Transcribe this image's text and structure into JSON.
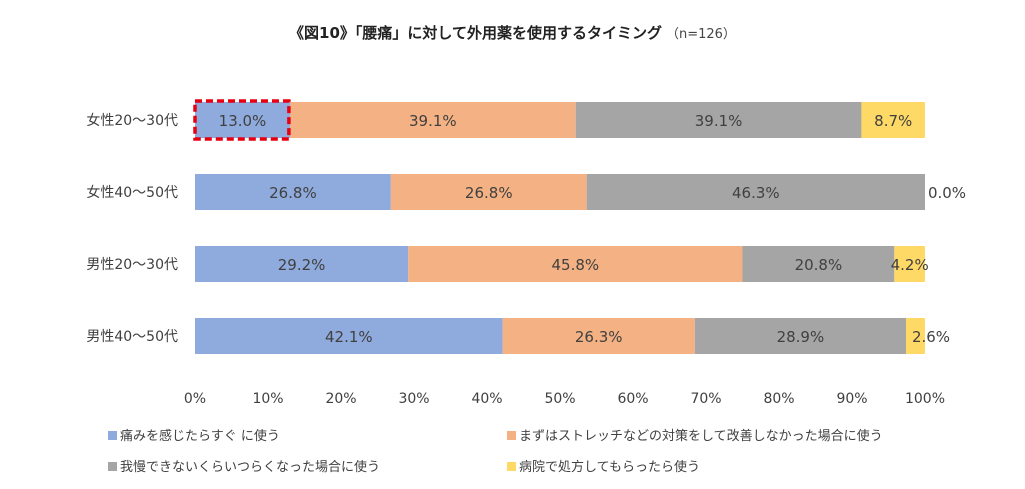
{
  "chart_data": {
    "type": "bar",
    "orientation": "horizontal",
    "stacked": "percent",
    "title": "《図10》「腰痛」に対して外用薬を使用するタイミング",
    "title_note": "（n=126）",
    "categories": [
      "女性20～30代",
      "女性40～50代",
      "男性20～30代",
      "男性40～50代"
    ],
    "series": [
      {
        "name": "痛みを感じたらすぐ に使う",
        "color": "#8faadc",
        "values": [
          13.0,
          26.8,
          29.2,
          42.1
        ],
        "labels": [
          "13.0%",
          "26.8%",
          "29.2%",
          "42.1%"
        ]
      },
      {
        "name": "まずはストレッチなどの対策をして改善しなかった場合に使う",
        "color": "#f4b183",
        "values": [
          39.1,
          26.8,
          45.8,
          26.3
        ],
        "labels": [
          "39.1%",
          "26.8%",
          "45.8%",
          "26.3%"
        ]
      },
      {
        "name": "我慢できないくらいつらくなった場合に使う",
        "color": "#a5a5a5",
        "values": [
          39.1,
          46.3,
          20.8,
          28.9
        ],
        "labels": [
          "39.1%",
          "46.3%",
          "20.8%",
          "28.9%"
        ]
      },
      {
        "name": "病院で処方してもらったら使う",
        "color": "#ffd966",
        "values": [
          8.7,
          0.0,
          4.2,
          2.6
        ],
        "labels": [
          "8.7%",
          "0.0%",
          "4.2%",
          "2.6%"
        ]
      }
    ],
    "xlim": [
      0,
      100
    ],
    "xticks": [
      "0%",
      "10%",
      "20%",
      "30%",
      "40%",
      "50%",
      "60%",
      "70%",
      "80%",
      "90%",
      "100%"
    ],
    "grid": false,
    "legend_position": "bottom",
    "highlight": {
      "category": "女性20～30代",
      "series": "痛みを感じたらすぐ に使う",
      "style": "red dashed box"
    }
  }
}
